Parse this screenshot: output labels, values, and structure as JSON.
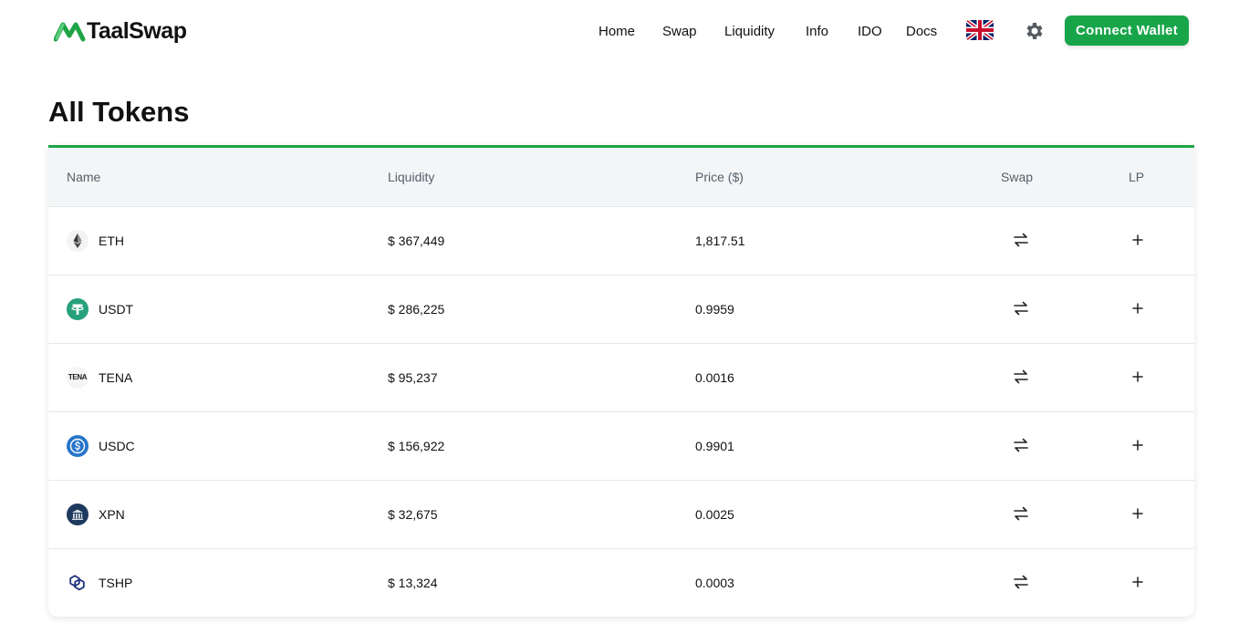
{
  "brand": {
    "name": "TaalSwap",
    "accent": "#18a54a"
  },
  "nav": {
    "items": [
      {
        "label": "Home"
      },
      {
        "label": "Swap"
      },
      {
        "label": "Liquidity"
      },
      {
        "label": "Info"
      },
      {
        "label": "IDO"
      },
      {
        "label": "Docs"
      }
    ],
    "language_icon": "uk-flag-icon",
    "settings_icon": "gear-icon",
    "connect_label": "Connect Wallet"
  },
  "page": {
    "title": "All Tokens"
  },
  "table": {
    "columns": {
      "name": "Name",
      "liquidity": "Liquidity",
      "price": "Price ($)",
      "swap": "Swap",
      "lp": "LP"
    },
    "rows": [
      {
        "symbol": "ETH",
        "liquidity": "$ 367,449",
        "price": "1,817.51",
        "icon": "eth-icon"
      },
      {
        "symbol": "USDT",
        "liquidity": "$ 286,225",
        "price": "0.9959",
        "icon": "usdt-icon"
      },
      {
        "symbol": "TENA",
        "liquidity": "$ 95,237",
        "price": "0.0016",
        "icon": "tena-icon",
        "icon_text": "TENA"
      },
      {
        "symbol": "USDC",
        "liquidity": "$ 156,922",
        "price": "0.9901",
        "icon": "usdc-icon"
      },
      {
        "symbol": "XPN",
        "liquidity": "$ 32,675",
        "price": "0.0025",
        "icon": "xpn-icon"
      },
      {
        "symbol": "TSHP",
        "liquidity": "$ 13,324",
        "price": "0.0003",
        "icon": "tshp-icon"
      }
    ],
    "swap_icon": "swap-arrows-icon",
    "lp_icon": "plus-icon"
  }
}
